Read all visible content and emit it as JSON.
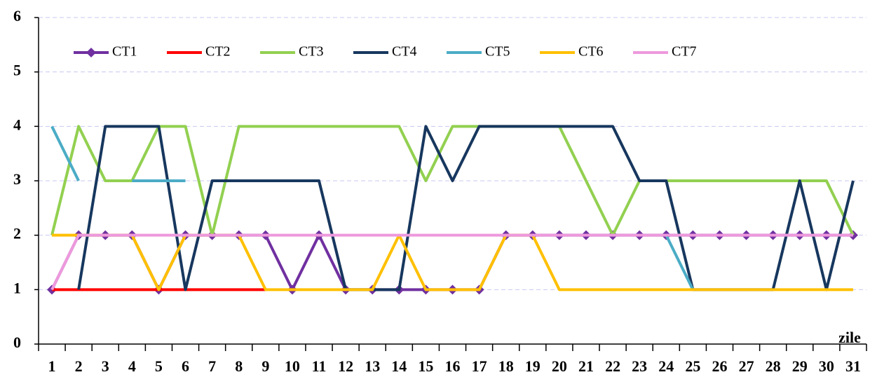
{
  "chart_data": {
    "type": "line",
    "x_label": "zile",
    "categories": [
      "1",
      "2",
      "3",
      "4",
      "5",
      "6",
      "7",
      "8",
      "9",
      "10",
      "11",
      "12",
      "13",
      "14",
      "15",
      "16",
      "17",
      "18",
      "19",
      "20",
      "21",
      "22",
      "23",
      "24",
      "25",
      "26",
      "27",
      "28",
      "29",
      "30",
      "31"
    ],
    "ylim": [
      0,
      6
    ],
    "yticks": [
      0,
      1,
      2,
      3,
      4,
      5,
      6
    ],
    "grid": true,
    "legend": "top-left",
    "series": [
      {
        "name": "CT1",
        "color": "#7030a0",
        "marker": "diamond",
        "values": [
          1,
          2,
          2,
          2,
          1,
          2,
          2,
          2,
          2,
          1,
          2,
          1,
          1,
          1,
          1,
          1,
          1,
          2,
          2,
          2,
          2,
          2,
          2,
          2,
          2,
          2,
          2,
          2,
          2,
          2,
          2
        ]
      },
      {
        "name": "CT2",
        "color": "#ff0000",
        "values": [
          1,
          1,
          1,
          1,
          1,
          1,
          1,
          1,
          1,
          null,
          null,
          null,
          null,
          null,
          null,
          null,
          null,
          null,
          null,
          null,
          null,
          null,
          null,
          null,
          null,
          null,
          null,
          null,
          null,
          null,
          null
        ]
      },
      {
        "name": "CT3",
        "color": "#92d050",
        "values": [
          2,
          4,
          3,
          3,
          4,
          4,
          2,
          4,
          4,
          4,
          4,
          4,
          4,
          4,
          3,
          4,
          4,
          4,
          4,
          4,
          3,
          2,
          3,
          3,
          3,
          3,
          3,
          3,
          3,
          3,
          2
        ]
      },
      {
        "name": "CT4",
        "color": "#17375e",
        "values": [
          null,
          1,
          4,
          4,
          4,
          1,
          3,
          3,
          3,
          3,
          3,
          1,
          1,
          1,
          4,
          3,
          4,
          4,
          4,
          4,
          4,
          4,
          3,
          3,
          1,
          1,
          1,
          1,
          3,
          1,
          3
        ]
      },
      {
        "name": "CT5",
        "color": "#4bacc6",
        "values": [
          4,
          3,
          null,
          3,
          3,
          3,
          null,
          null,
          null,
          null,
          null,
          null,
          null,
          null,
          null,
          null,
          null,
          null,
          null,
          null,
          null,
          null,
          null,
          2,
          1,
          null,
          null,
          null,
          null,
          null,
          null
        ]
      },
      {
        "name": "CT6",
        "color": "#ffc000",
        "values": [
          2,
          2,
          2,
          2,
          1,
          2,
          2,
          2,
          1,
          1,
          1,
          1,
          1,
          2,
          1,
          1,
          1,
          2,
          2,
          1,
          1,
          1,
          1,
          1,
          1,
          1,
          1,
          1,
          1,
          1,
          1
        ]
      },
      {
        "name": "CT7",
        "color": "#ee99dd",
        "values": [
          1,
          2,
          2,
          2,
          2,
          2,
          2,
          2,
          2,
          2,
          2,
          2,
          2,
          2,
          2,
          2,
          2,
          2,
          2,
          2,
          2,
          2,
          2,
          2,
          2,
          2,
          2,
          2,
          2,
          2,
          2
        ]
      }
    ]
  }
}
